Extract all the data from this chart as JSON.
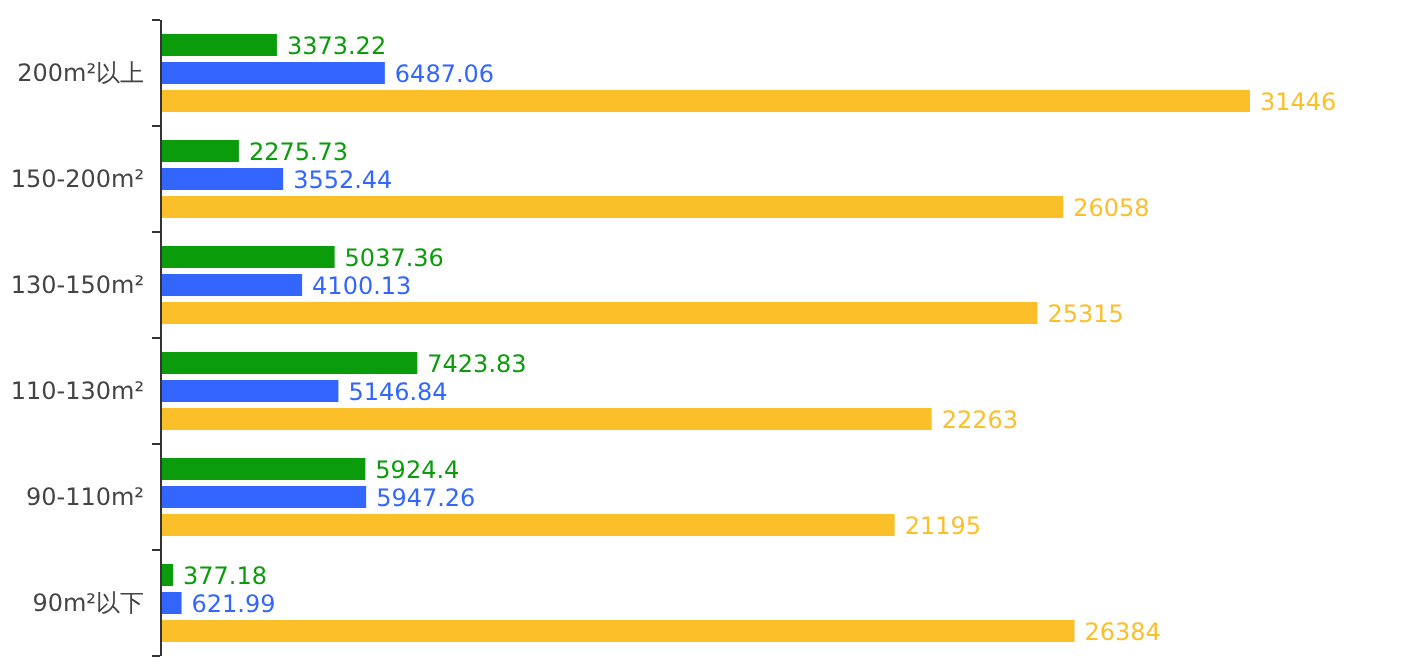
{
  "chart_data": {
    "type": "bar",
    "orientation": "horizontal",
    "categories": [
      "200m²以上",
      "150-200m²",
      "130-150m²",
      "110-130m²",
      "90-110m²",
      "90m²以下"
    ],
    "series": [
      {
        "color": "#0b9c0b",
        "values": [
          3373.22,
          2275.73,
          5037.36,
          7423.83,
          5924.4,
          377.18
        ]
      },
      {
        "color": "#3366ff",
        "values": [
          6487.06,
          3552.44,
          4100.13,
          5146.84,
          5947.26,
          621.99
        ]
      },
      {
        "color": "#fbbf2a",
        "values": [
          31446,
          26058,
          25315,
          22263,
          21195,
          26384
        ]
      }
    ],
    "data_labels": true
  }
}
